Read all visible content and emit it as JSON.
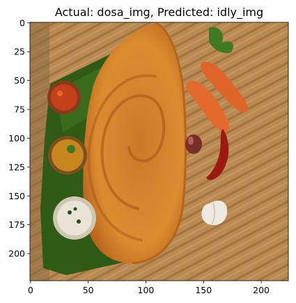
{
  "chart_data": {
    "type": "image",
    "title": "Actual: dosa_img, Predicted: idly_img",
    "xlabel": "",
    "ylabel": "",
    "image_shape": [
      224,
      224
    ],
    "xlim": [
      -0.5,
      223.5
    ],
    "ylim": [
      223.5,
      -0.5
    ],
    "x_ticks": [
      0,
      50,
      100,
      150,
      200
    ],
    "y_ticks": [
      0,
      25,
      50,
      75,
      100,
      125,
      150,
      175,
      200
    ],
    "grid": false,
    "image_description": "Masala dosa on a banana leaf with three bowls of condiments (red chutney, sambar, coconut chutney), carrots, a shallot, dried red chilli and a garlic bulb on a woven bamboo mat"
  },
  "colors": {
    "mat": "#b98a52",
    "mat_dark": "#9c6f3e",
    "leaf": "#2f5b17",
    "dosa": "#d88a2c",
    "dosa_edge": "#b5651b",
    "carrot": "#e0652a",
    "chilli": "#9a1a12",
    "red_chutney": "#c2411b",
    "sambar": "#c8861f",
    "coconut": "#e9e4d6",
    "garlic": "#eeeae2",
    "shallot": "#7a2e2a"
  }
}
